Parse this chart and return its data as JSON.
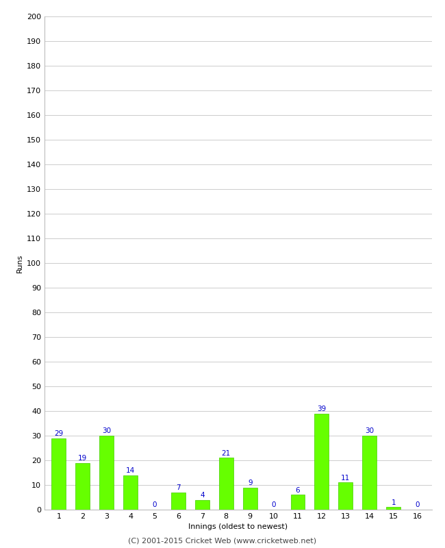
{
  "title": "",
  "xlabel": "Innings (oldest to newest)",
  "ylabel": "Runs",
  "categories": [
    "1",
    "2",
    "3",
    "4",
    "5",
    "6",
    "7",
    "8",
    "9",
    "10",
    "11",
    "12",
    "13",
    "14",
    "15",
    "16"
  ],
  "values": [
    29,
    19,
    30,
    14,
    0,
    7,
    4,
    21,
    9,
    0,
    6,
    39,
    11,
    30,
    1,
    0
  ],
  "bar_color": "#66ff00",
  "bar_edge_color": "#44cc00",
  "value_label_color": "#0000cc",
  "ylim": [
    0,
    200
  ],
  "yticks": [
    0,
    10,
    20,
    30,
    40,
    50,
    60,
    70,
    80,
    90,
    100,
    110,
    120,
    130,
    140,
    150,
    160,
    170,
    180,
    190,
    200
  ],
  "background_color": "#ffffff",
  "grid_color": "#cccccc",
  "footer": "(C) 2001-2015 Cricket Web (www.cricketweb.net)",
  "axis_label_fontsize": 8,
  "tick_fontsize": 8,
  "value_label_fontsize": 7.5,
  "footer_fontsize": 8
}
